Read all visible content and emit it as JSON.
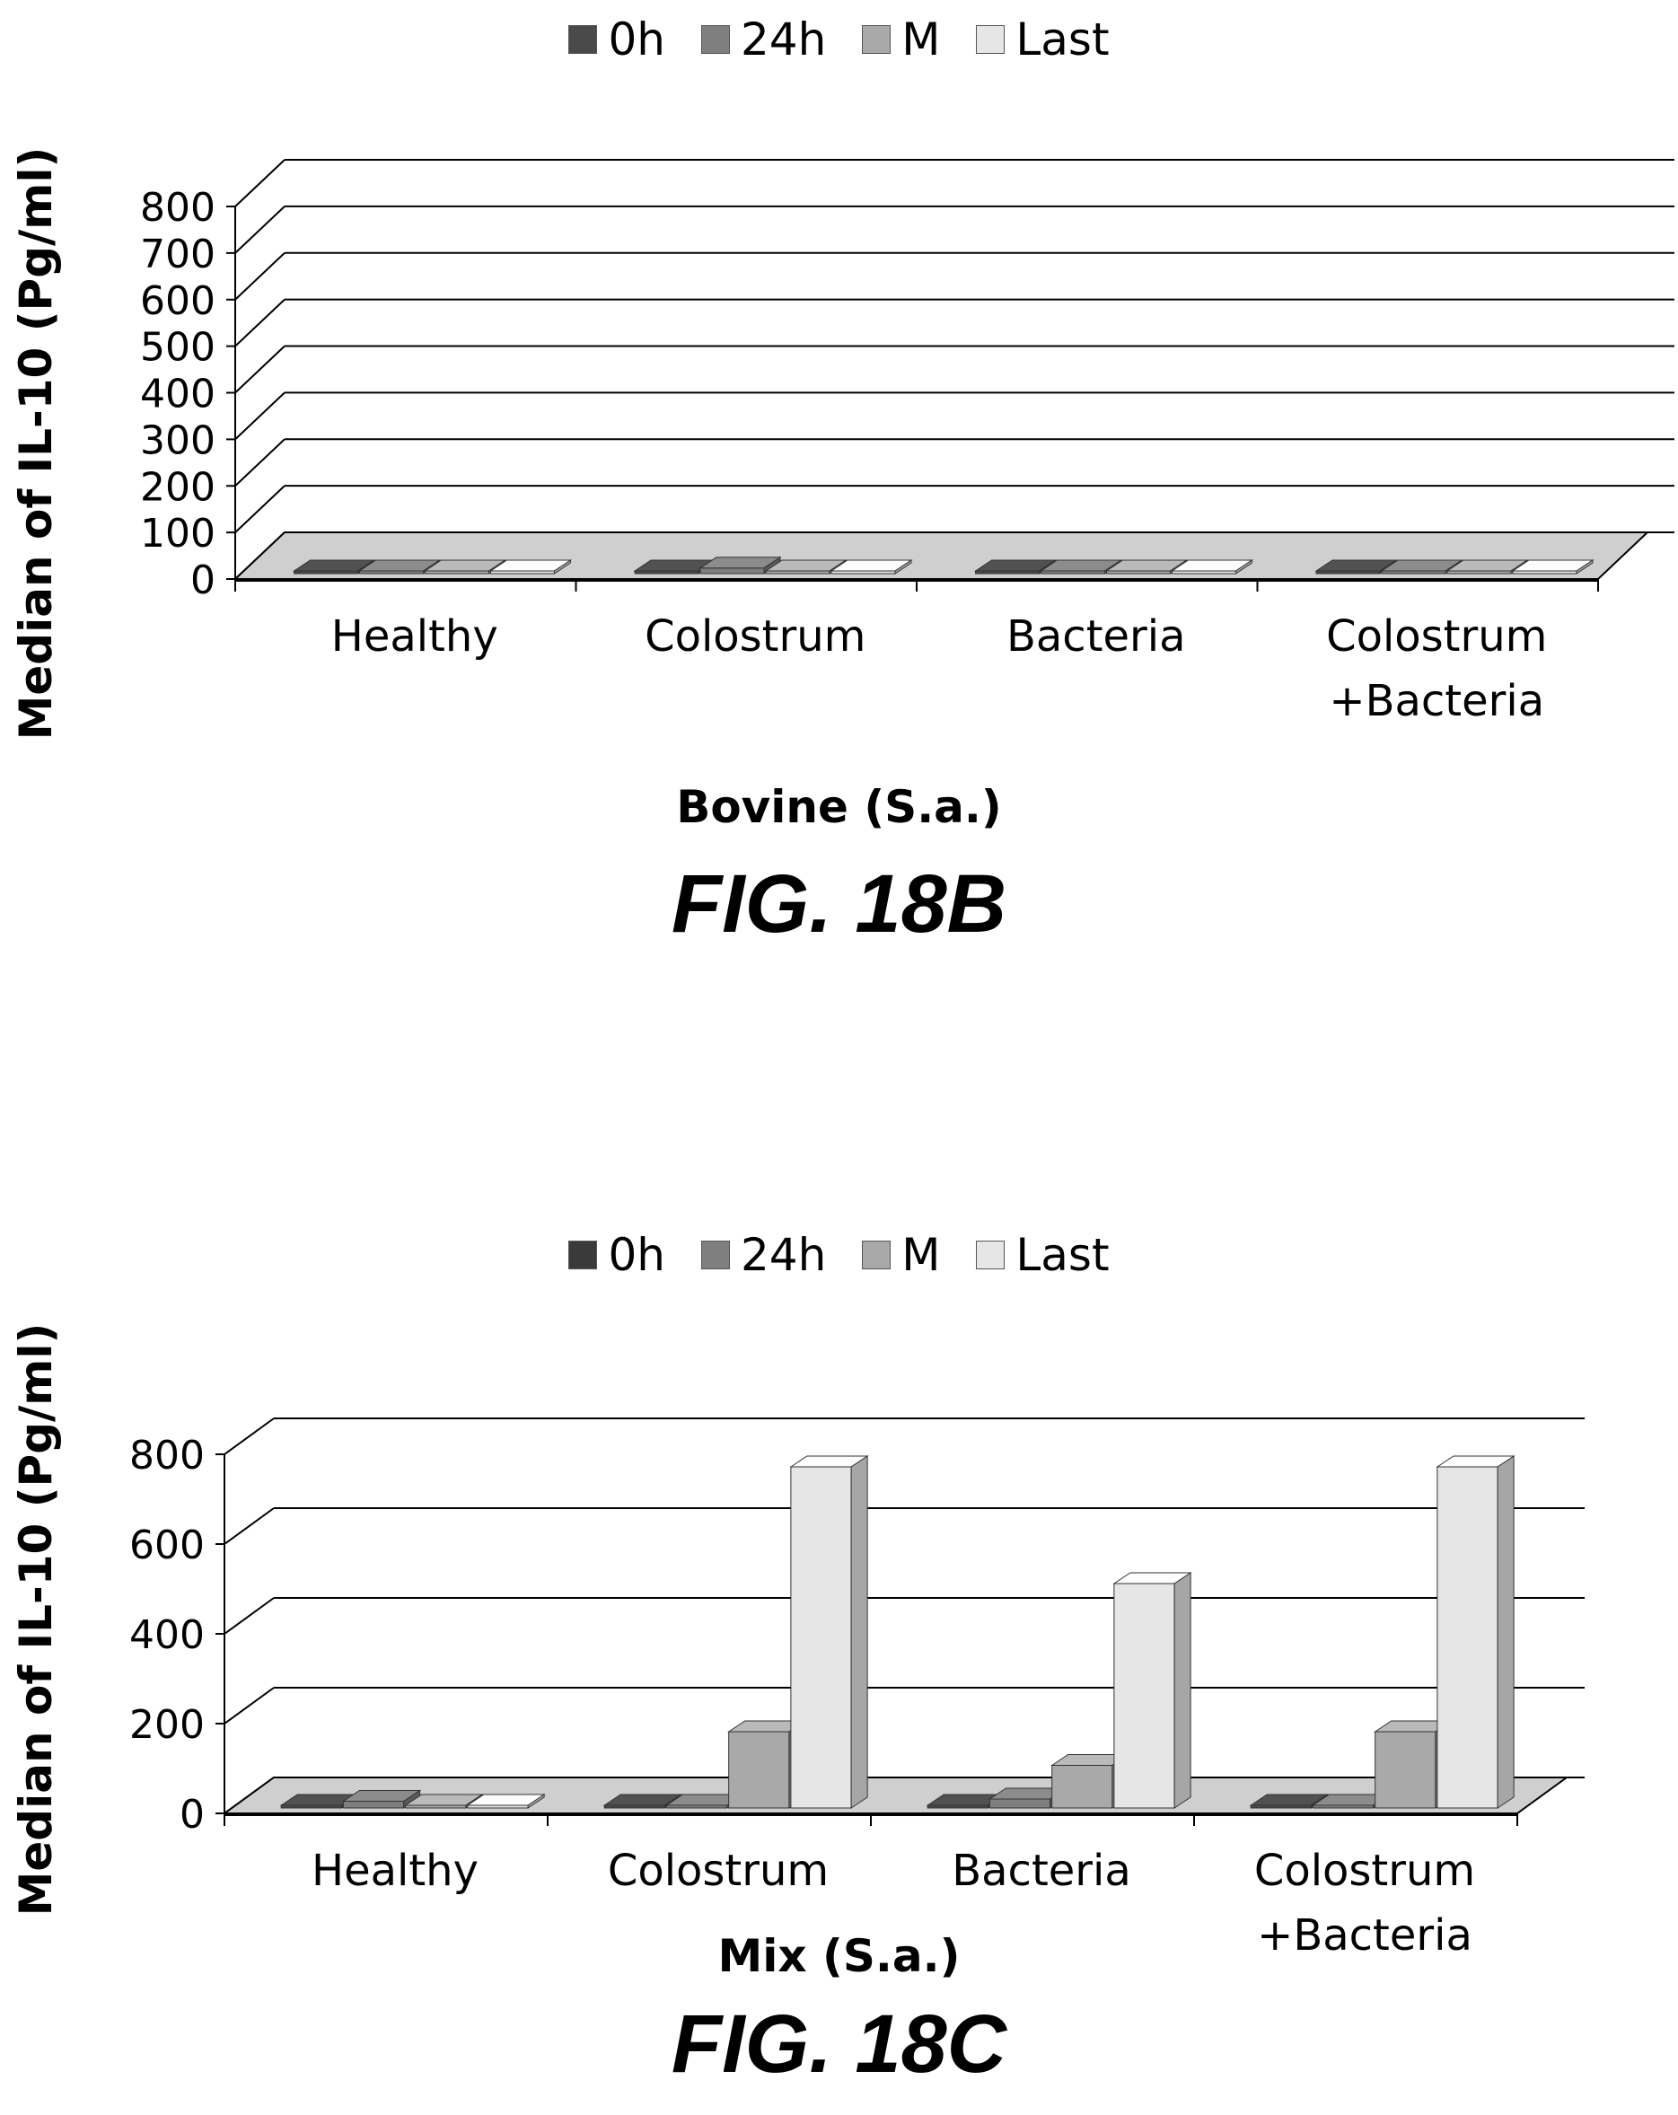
{
  "colors": {
    "0h": "#4a4a4a",
    "24h": "#7f7f7f",
    "M": "#a9a9a9",
    "Last": "#e6e6e6"
  },
  "chart_data": [
    {
      "type": "bar",
      "figure_label": "FIG. 18B",
      "title": "",
      "xlabel": "Bovine (S.a.)",
      "ylabel": "Median of IL-10 (Pg/ml)",
      "ylim": [
        0,
        800
      ],
      "yticks": [
        0,
        100,
        200,
        300,
        400,
        500,
        600,
        700,
        800
      ],
      "categories": [
        "Healthy",
        "Colostrum",
        "Bacteria",
        "Colostrum\n+Bacteria"
      ],
      "series": [
        {
          "name": "0h",
          "values": [
            2,
            2,
            2,
            2
          ]
        },
        {
          "name": "24h",
          "values": [
            5,
            12,
            5,
            3
          ]
        },
        {
          "name": "M",
          "values": [
            2,
            2,
            2,
            2
          ]
        },
        {
          "name": "Last",
          "values": [
            2,
            2,
            2,
            2
          ]
        }
      ],
      "legend_position": "top",
      "grid": true
    },
    {
      "type": "bar",
      "figure_label": "FIG. 18C",
      "title": "",
      "xlabel": "Mix (S.a.)",
      "ylabel": "Median of IL-10 (Pg/ml)",
      "ylim": [
        0,
        800
      ],
      "yticks": [
        0,
        200,
        400,
        600,
        800
      ],
      "categories": [
        "Healthy",
        "Colostrum",
        "Bacteria",
        "Colostrum\n+Bacteria"
      ],
      "series": [
        {
          "name": "0h",
          "values": [
            2,
            2,
            2,
            2
          ]
        },
        {
          "name": "24h",
          "values": [
            15,
            2,
            20,
            2
          ]
        },
        {
          "name": "M",
          "values": [
            2,
            170,
            95,
            170
          ]
        },
        {
          "name": "Last",
          "values": [
            2,
            760,
            500,
            760
          ]
        }
      ],
      "legend_position": "top",
      "grid": true
    }
  ]
}
